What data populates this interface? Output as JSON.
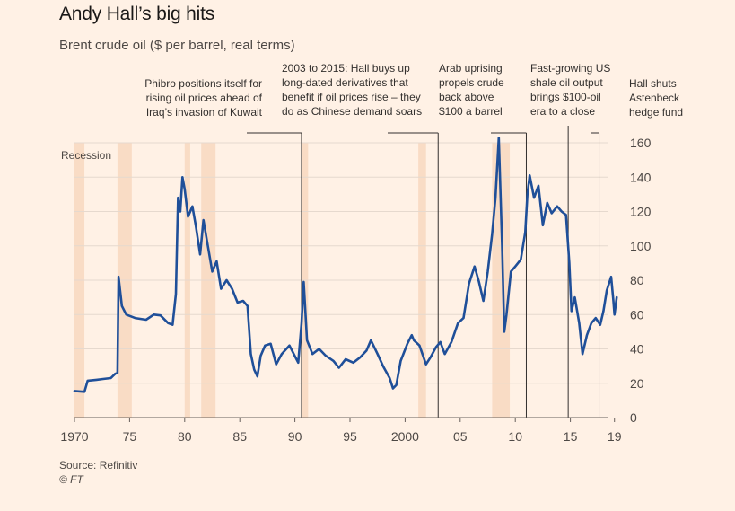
{
  "chart_data": {
    "type": "line",
    "title": "Andy Hall’s big hits",
    "subtitle": "Brent crude oil ($ per barrel, real terms)",
    "xlabel": "",
    "ylabel": "",
    "xlim": [
      1970,
      2020
    ],
    "ylim": [
      0,
      160
    ],
    "yticks": [
      0,
      20,
      40,
      60,
      80,
      100,
      120,
      140,
      160
    ],
    "xticks": [
      {
        "value": 1970,
        "label": "1970"
      },
      {
        "value": 1975,
        "label": "75"
      },
      {
        "value": 1980,
        "label": "80"
      },
      {
        "value": 1985,
        "label": "85"
      },
      {
        "value": 1990,
        "label": "90"
      },
      {
        "value": 1995,
        "label": "95"
      },
      {
        "value": 2000,
        "label": "2000"
      },
      {
        "value": 2005,
        "label": "05"
      },
      {
        "value": 2010,
        "label": "10"
      },
      {
        "value": 2015,
        "label": "15"
      },
      {
        "value": 2019,
        "label": "19"
      }
    ],
    "recession_label": "Recession",
    "recessions": [
      [
        1970.0,
        1970.9
      ],
      [
        1973.9,
        1975.2
      ],
      [
        1980.0,
        1980.5
      ],
      [
        1981.5,
        1982.8
      ],
      [
        1990.6,
        1991.2
      ],
      [
        2001.2,
        2001.9
      ],
      [
        2007.9,
        2009.5
      ]
    ],
    "series": [
      {
        "values": [
          [
            1970.0,
            15.5
          ],
          [
            1970.9,
            15.0
          ],
          [
            1971.2,
            21.5
          ],
          [
            1972.0,
            22.0
          ],
          [
            1972.6,
            22.5
          ],
          [
            1973.3,
            23.0
          ],
          [
            1973.7,
            25.5
          ],
          [
            1973.9,
            26.0
          ],
          [
            1974.0,
            82.0
          ],
          [
            1974.3,
            65.0
          ],
          [
            1974.7,
            60.0
          ],
          [
            1975.5,
            58.0
          ],
          [
            1976.5,
            57.0
          ],
          [
            1977.2,
            60.0
          ],
          [
            1977.8,
            59.5
          ],
          [
            1978.5,
            55.0
          ],
          [
            1978.9,
            54.0
          ],
          [
            1979.2,
            72.0
          ],
          [
            1979.4,
            128.0
          ],
          [
            1979.6,
            120.0
          ],
          [
            1979.8,
            140.0
          ],
          [
            1980.0,
            133.0
          ],
          [
            1980.3,
            117.0
          ],
          [
            1980.7,
            123.0
          ],
          [
            1981.0,
            112.0
          ],
          [
            1981.4,
            95.0
          ],
          [
            1981.7,
            115.0
          ],
          [
            1982.1,
            100.0
          ],
          [
            1982.5,
            85.0
          ],
          [
            1982.9,
            91.0
          ],
          [
            1983.3,
            75.0
          ],
          [
            1983.8,
            80.0
          ],
          [
            1984.3,
            75.0
          ],
          [
            1984.8,
            67.0
          ],
          [
            1985.3,
            68.0
          ],
          [
            1985.7,
            65.0
          ],
          [
            1986.0,
            37.0
          ],
          [
            1986.3,
            28.0
          ],
          [
            1986.6,
            24.0
          ],
          [
            1986.9,
            36.0
          ],
          [
            1987.3,
            42.0
          ],
          [
            1987.8,
            43.0
          ],
          [
            1988.3,
            31.0
          ],
          [
            1988.8,
            37.0
          ],
          [
            1989.5,
            42.0
          ],
          [
            1990.3,
            32.0
          ],
          [
            1990.6,
            55.0
          ],
          [
            1990.8,
            79.0
          ],
          [
            1991.1,
            45.0
          ],
          [
            1991.6,
            37.0
          ],
          [
            1992.2,
            40.0
          ],
          [
            1992.8,
            36.0
          ],
          [
            1993.5,
            33.0
          ],
          [
            1994.0,
            29.0
          ],
          [
            1994.6,
            34.0
          ],
          [
            1995.3,
            32.0
          ],
          [
            1995.9,
            35.0
          ],
          [
            1996.5,
            39.0
          ],
          [
            1996.9,
            45.0
          ],
          [
            1997.5,
            37.0
          ],
          [
            1998.0,
            30.0
          ],
          [
            1998.6,
            23.0
          ],
          [
            1998.9,
            17.0
          ],
          [
            1999.2,
            19.0
          ],
          [
            1999.6,
            33.0
          ],
          [
            2000.2,
            43.0
          ],
          [
            2000.6,
            48.0
          ],
          [
            2000.8,
            45.0
          ],
          [
            2001.3,
            42.0
          ],
          [
            2001.9,
            31.0
          ],
          [
            2002.3,
            35.0
          ],
          [
            2002.8,
            41.0
          ],
          [
            2003.2,
            44.0
          ],
          [
            2003.6,
            37.0
          ],
          [
            2004.2,
            44.0
          ],
          [
            2004.8,
            55.0
          ],
          [
            2005.3,
            58.0
          ],
          [
            2005.8,
            78.0
          ],
          [
            2006.3,
            88.0
          ],
          [
            2006.7,
            79.0
          ],
          [
            2007.1,
            68.0
          ],
          [
            2007.5,
            85.0
          ],
          [
            2007.9,
            107.0
          ],
          [
            2008.2,
            128.0
          ],
          [
            2008.5,
            163.0
          ],
          [
            2008.8,
            100.0
          ],
          [
            2009.0,
            50.0
          ],
          [
            2009.2,
            60.0
          ],
          [
            2009.6,
            85.0
          ],
          [
            2010.0,
            88.0
          ],
          [
            2010.5,
            92.0
          ],
          [
            2010.9,
            108.0
          ],
          [
            2011.1,
            130.0
          ],
          [
            2011.3,
            141.0
          ],
          [
            2011.7,
            128.0
          ],
          [
            2012.1,
            135.0
          ],
          [
            2012.5,
            112.0
          ],
          [
            2012.9,
            125.0
          ],
          [
            2013.3,
            119.0
          ],
          [
            2013.8,
            123.0
          ],
          [
            2014.2,
            120.0
          ],
          [
            2014.6,
            118.0
          ],
          [
            2014.9,
            90.0
          ],
          [
            2015.1,
            62.0
          ],
          [
            2015.4,
            70.0
          ],
          [
            2015.8,
            55.0
          ],
          [
            2016.1,
            37.0
          ],
          [
            2016.5,
            48.0
          ],
          [
            2016.9,
            55.0
          ],
          [
            2017.3,
            58.0
          ],
          [
            2017.7,
            54.0
          ],
          [
            2018.0,
            62.0
          ],
          [
            2018.3,
            74.0
          ],
          [
            2018.7,
            82.0
          ],
          [
            2018.9,
            68.0
          ],
          [
            2019.0,
            60.0
          ],
          [
            2019.2,
            70.0
          ]
        ]
      }
    ],
    "annotations": [
      {
        "x": 1990.6,
        "lines": [
          "Phibro positions itself for",
          "rising oil prices ahead of",
          "Iraq’s invasion of Kuwait"
        ]
      },
      {
        "x": 2003.0,
        "lines": [
          "2003 to 2015: Hall buys up",
          "long-dated derivatives that",
          "benefit if oil prices rise – they",
          "do as Chinese demand soars"
        ]
      },
      {
        "x": 2011.0,
        "lines": [
          "Arab uprising",
          "propels crude",
          "back above",
          "$100 a barrel"
        ]
      },
      {
        "x": 2014.8,
        "lines": [
          "Fast-growing US",
          "shale oil output",
          "brings $100-oil",
          "era to a close"
        ]
      },
      {
        "x": 2017.6,
        "lines": [
          "Hall shuts",
          "Astenbeck",
          "hedge fund"
        ]
      }
    ],
    "colors": {
      "line": "#1F4F99",
      "recession": "#F9DCC5",
      "grid": "#E6D9CE",
      "axis": "#66605C"
    }
  },
  "footer": {
    "source": "Source: Refinitiv",
    "copyright": "© FT"
  }
}
